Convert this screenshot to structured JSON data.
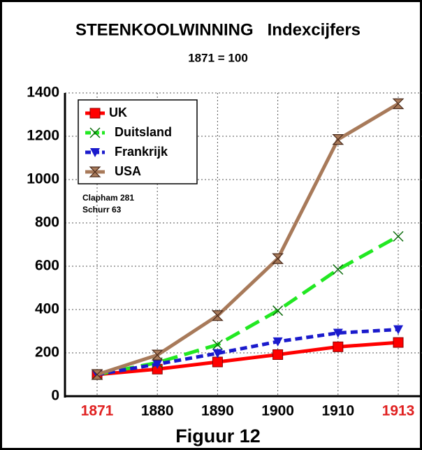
{
  "chart_data": {
    "type": "line",
    "title": "STEENKOOLWINNING   Indexcijfers",
    "subtitle": "1871 = 100",
    "caption": "Figuur 12",
    "annotations": [
      "Clapham 281",
      "Schurr 63"
    ],
    "categories": [
      "1871",
      "1880",
      "1890",
      "1900",
      "1910",
      "1913"
    ],
    "category_colors": [
      "#e02020",
      "#000000",
      "#000000",
      "#000000",
      "#000000",
      "#e02020"
    ],
    "series": [
      {
        "name": "UK",
        "color": "#ff0000",
        "marker": "square",
        "dash": "none",
        "values": [
          100,
          125,
          158,
          192,
          228,
          248
        ]
      },
      {
        "name": "Duitsland",
        "color": "#22e822",
        "marker": "x",
        "dash": "22 10",
        "values": [
          100,
          155,
          238,
          395,
          585,
          738
        ]
      },
      {
        "name": "Frankrijk",
        "color": "#1a1acc",
        "marker": "triangle",
        "dash": "10 6",
        "values": [
          100,
          148,
          198,
          252,
          292,
          308
        ]
      },
      {
        "name": "USA",
        "color": "#a87a5a",
        "marker": "hourglass",
        "dash": "none",
        "values": [
          100,
          190,
          372,
          635,
          1185,
          1350
        ]
      }
    ],
    "ylim": [
      0,
      1400
    ],
    "yticks": [
      0,
      200,
      400,
      600,
      800,
      1000,
      1200,
      1400
    ],
    "grid": true,
    "legend": "upper left"
  }
}
